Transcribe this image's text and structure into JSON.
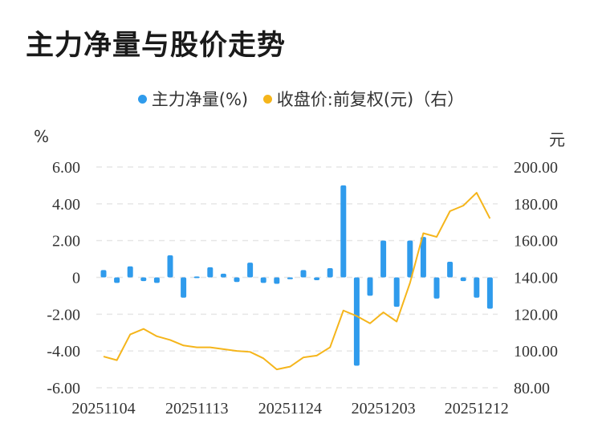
{
  "title": "主力净量与股价走势",
  "legend": [
    {
      "label": "主力净量(%)",
      "color": "#2f9bec"
    },
    {
      "label": "收盘价:前复权(元)（右）",
      "color": "#f5b51b"
    }
  ],
  "units": {
    "left": "%",
    "right": "元"
  },
  "chart_data": {
    "type": "bar+line",
    "x_ticks": [
      "20251104",
      "20251113",
      "20251124",
      "20251203",
      "20251212"
    ],
    "left_axis": {
      "unit": "%",
      "ylim": [
        -6,
        6
      ],
      "ticks": [
        "6.00",
        "4.00",
        "2.00",
        "0",
        "-2.00",
        "-4.00",
        "-6.00"
      ]
    },
    "right_axis": {
      "unit": "元",
      "ylim": [
        80,
        200
      ],
      "ticks": [
        "200.00",
        "180.00",
        "160.00",
        "140.00",
        "120.00",
        "100.00",
        "80.00"
      ]
    },
    "series": [
      {
        "name": "主力净量(%)",
        "type": "bar",
        "axis": "left",
        "color": "#2f9bec",
        "values": [
          0.4,
          -0.3,
          0.6,
          -0.2,
          -0.3,
          1.2,
          -1.1,
          0.05,
          0.55,
          0.2,
          -0.25,
          0.8,
          -0.3,
          -0.35,
          -0.1,
          0.4,
          -0.15,
          0.5,
          5.0,
          -4.8,
          -1.0,
          2.0,
          -1.6,
          2.0,
          2.2,
          -1.15,
          0.85,
          -0.2,
          -1.1,
          -1.7
        ]
      },
      {
        "name": "收盘价:前复权(元)（右）",
        "type": "line",
        "axis": "right",
        "color": "#f5b51b",
        "values": [
          97,
          95,
          109,
          112,
          108,
          106,
          103,
          102,
          102,
          101,
          100,
          99.5,
          96,
          90,
          91.5,
          96.5,
          97.5,
          102,
          122,
          119,
          115,
          121,
          116,
          137,
          164,
          162,
          176,
          179,
          186,
          172
        ]
      }
    ]
  }
}
